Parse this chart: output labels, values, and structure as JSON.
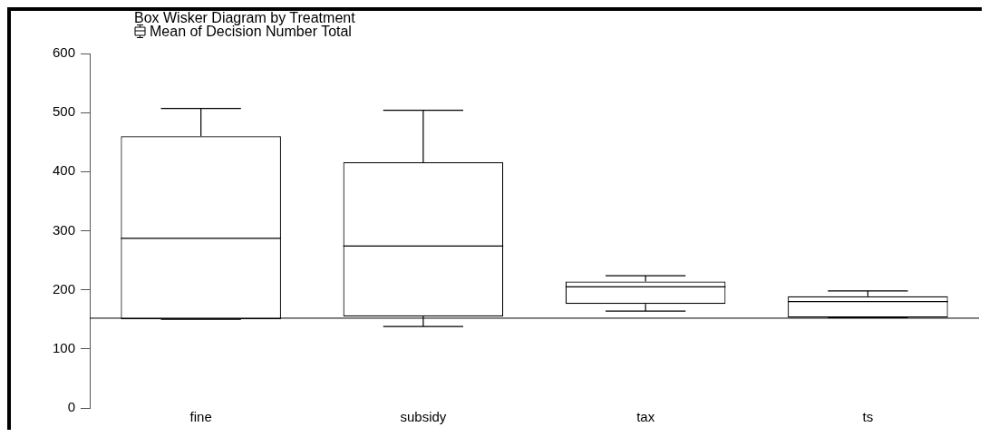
{
  "chart_data": {
    "type": "box",
    "title": "Box Wisker Diagram by Treatment",
    "categories": [
      "fine",
      "subsidy",
      "tax",
      "ts"
    ],
    "series": [
      {
        "name": "Mean of Decision Number Total",
        "color": "#000000",
        "boxes": [
          {
            "low": 150,
            "q1": 150,
            "median": 287,
            "q3": 460,
            "high": 507
          },
          {
            "low": 138,
            "q1": 155,
            "median": 274,
            "q3": 416,
            "high": 504
          },
          {
            "low": 164,
            "q1": 176,
            "median": 205,
            "q3": 214,
            "high": 224
          },
          {
            "low": 153,
            "q1": 153,
            "median": 180,
            "q3": 189,
            "high": 198
          }
        ]
      }
    ],
    "ylim": [
      0,
      600
    ],
    "yticks": [
      0,
      100,
      200,
      300,
      400,
      500,
      600
    ],
    "grid": false,
    "legend": "top left",
    "ref_lines": [
      {
        "axis": "y",
        "value": 152,
        "color": "#000000"
      }
    ]
  }
}
